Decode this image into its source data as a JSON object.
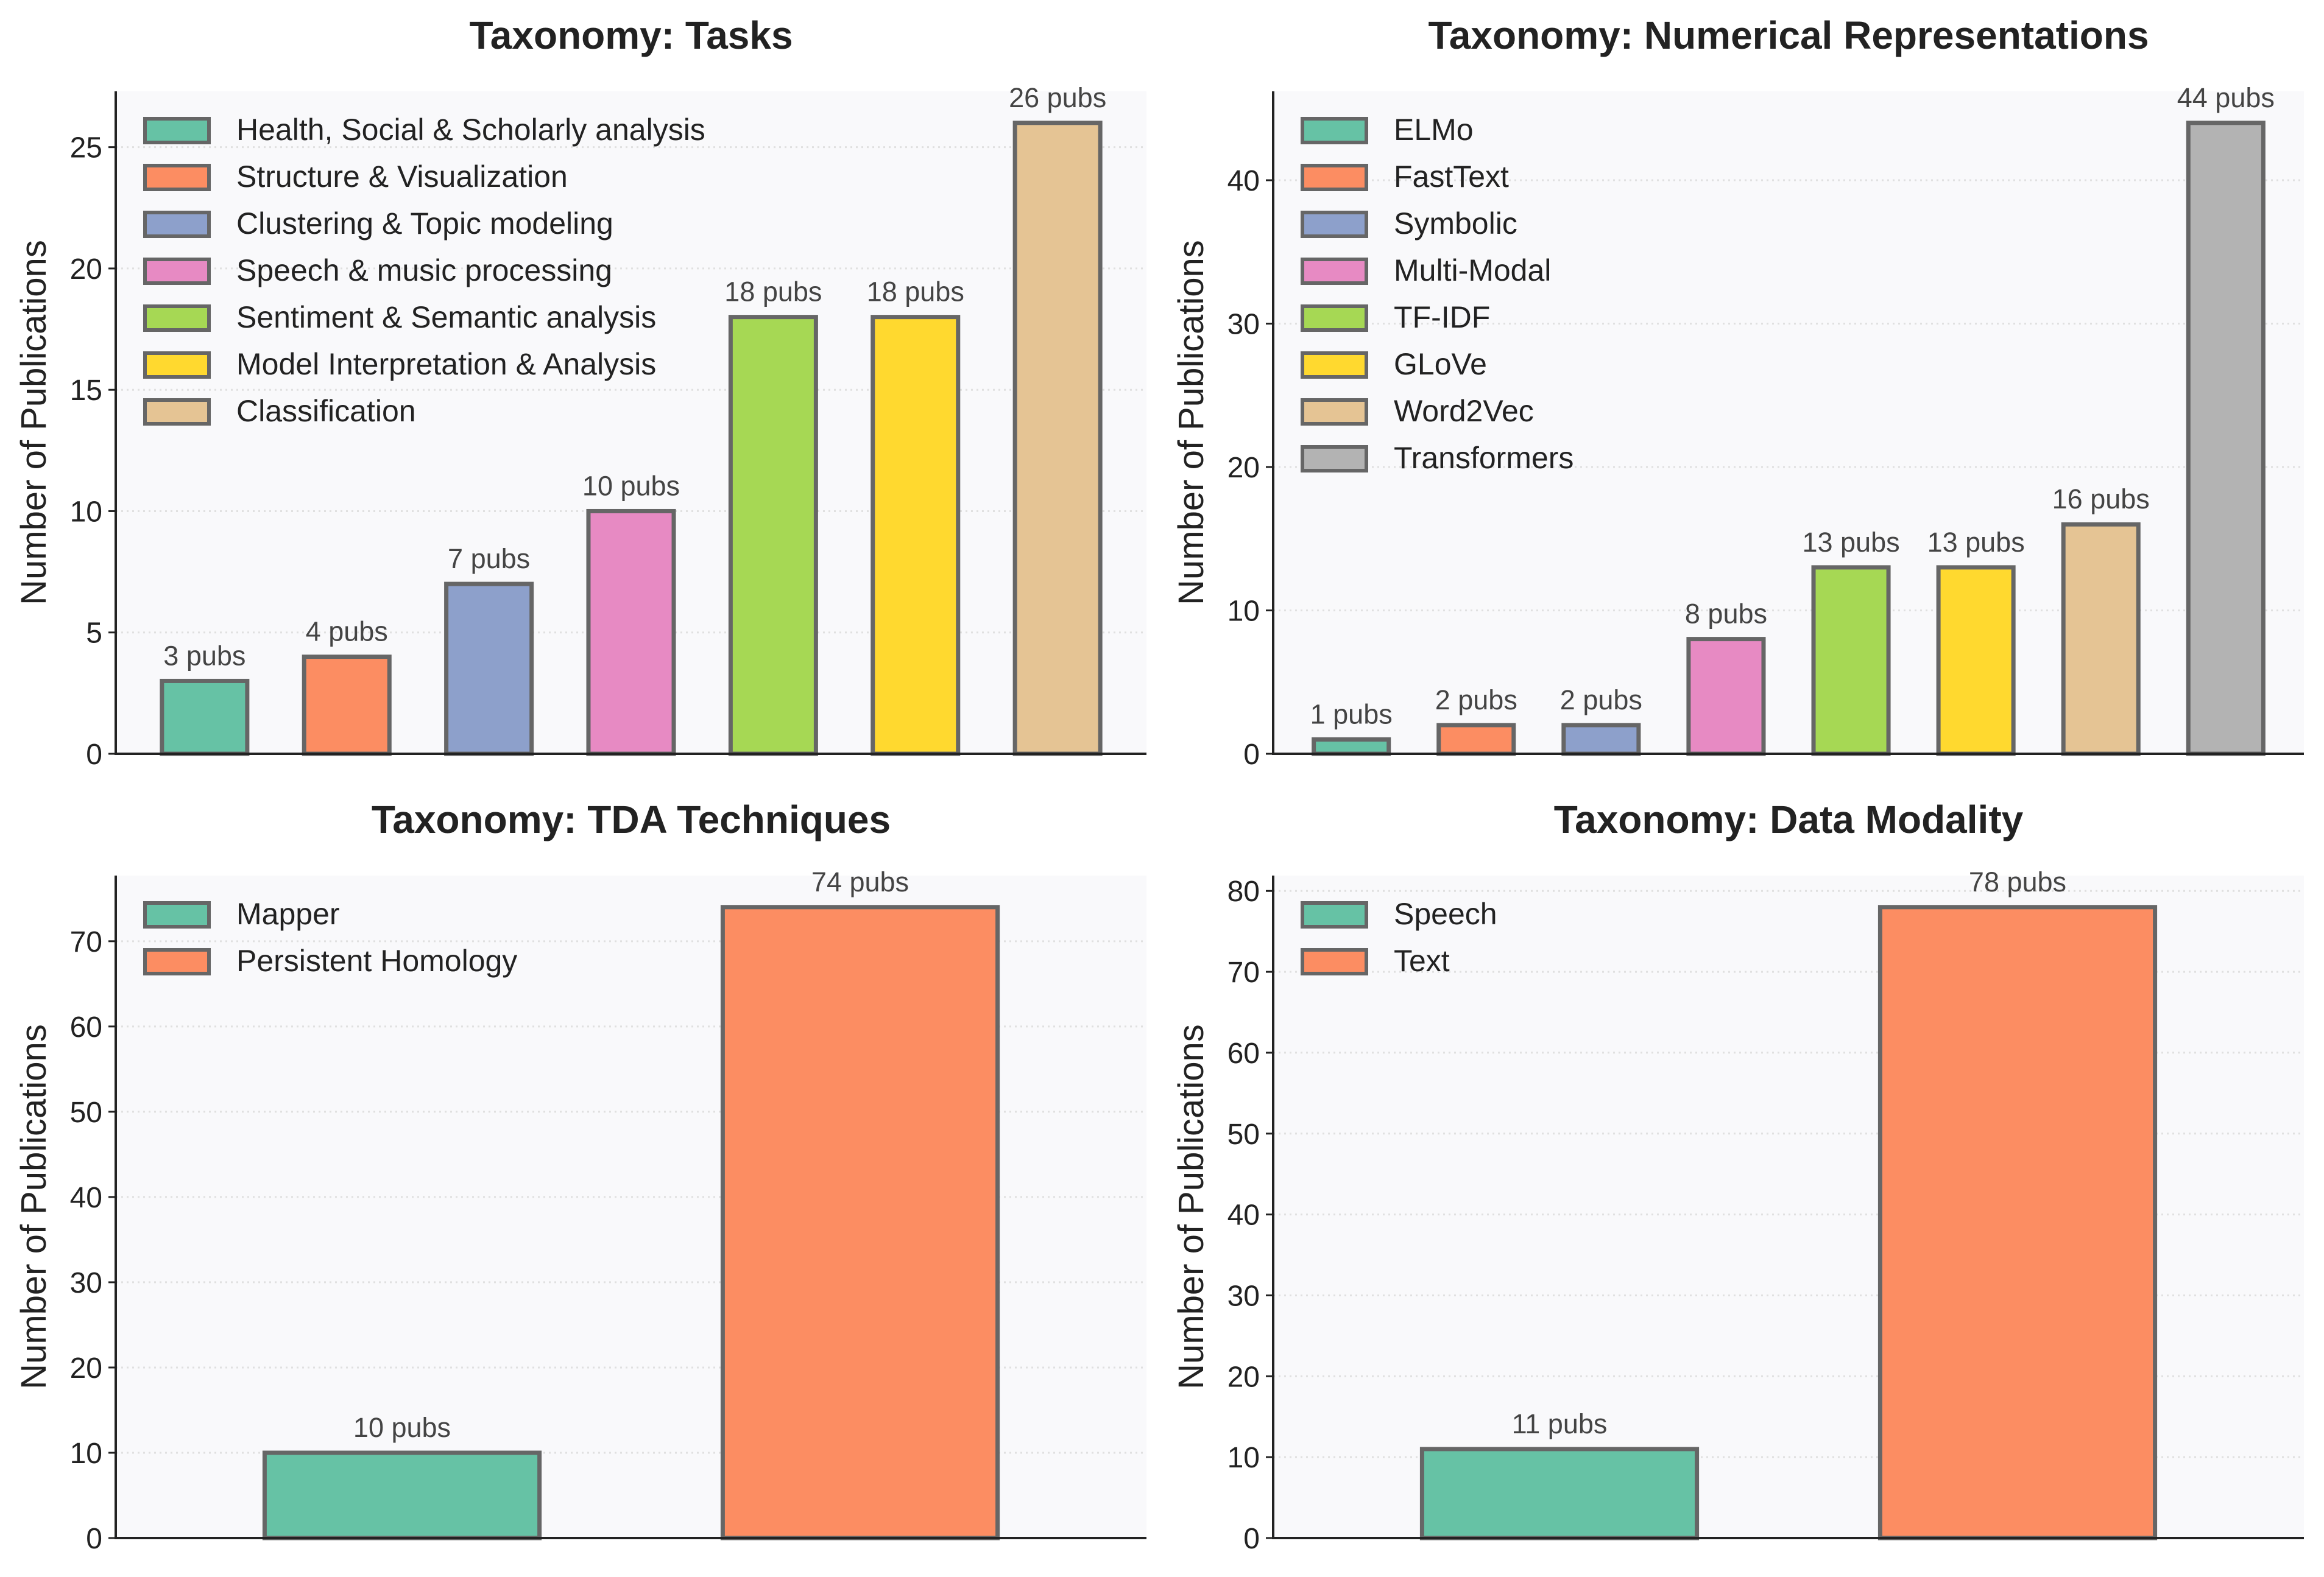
{
  "chart_data": [
    {
      "type": "bar",
      "title": "Taxonomy: Tasks",
      "ylabel": "Number of Publications",
      "ylim": [
        0,
        27.3
      ],
      "yticks": [
        0,
        5,
        10,
        15,
        20,
        25
      ],
      "grid": "horizontal dotted",
      "legend_position": "top-left",
      "categories": [
        "Health, Social & Scholarly analysis",
        "Structure & Visualization",
        "Clustering & Topic modeling",
        "Speech & music processing",
        "Sentiment & Semantic analysis",
        "Model Interpretation & Analysis",
        "Classification"
      ],
      "values": [
        3,
        4,
        7,
        10,
        18,
        18,
        26
      ],
      "data_labels": [
        "3 pubs",
        "4 pubs",
        "7 pubs",
        "10 pubs",
        "18 pubs",
        "18 pubs",
        "26 pubs"
      ],
      "colors": [
        "#66c2a5",
        "#fc8d62",
        "#8da0cb",
        "#e78ac3",
        "#a6d854",
        "#ffd92f",
        "#e5c494"
      ]
    },
    {
      "type": "bar",
      "title": "Taxonomy: Numerical Representations",
      "ylabel": "Number of Publications",
      "ylim": [
        0,
        46.2
      ],
      "yticks": [
        0,
        10,
        20,
        30,
        40
      ],
      "grid": "horizontal dotted",
      "legend_position": "top-left",
      "categories": [
        "ELMo",
        "FastText",
        "Symbolic",
        "Multi-Modal",
        "TF-IDF",
        "GLoVe",
        "Word2Vec",
        "Transformers"
      ],
      "values": [
        1,
        2,
        2,
        8,
        13,
        13,
        16,
        44
      ],
      "data_labels": [
        "1 pubs",
        "2 pubs",
        "2 pubs",
        "8 pubs",
        "13 pubs",
        "13 pubs",
        "16 pubs",
        "44 pubs"
      ],
      "colors": [
        "#66c2a5",
        "#fc8d62",
        "#8da0cb",
        "#e78ac3",
        "#a6d854",
        "#ffd92f",
        "#e5c494",
        "#b3b3b3"
      ]
    },
    {
      "type": "bar",
      "title": "Taxonomy: TDA Techniques",
      "ylabel": "Number of Publications",
      "ylim": [
        0,
        77.7
      ],
      "yticks": [
        0,
        10,
        20,
        30,
        40,
        50,
        60,
        70
      ],
      "grid": "horizontal dotted",
      "legend_position": "top-left",
      "categories": [
        "Mapper",
        "Persistent Homology"
      ],
      "values": [
        10,
        74
      ],
      "data_labels": [
        "10 pubs",
        "74 pubs"
      ],
      "colors": [
        "#66c2a5",
        "#fc8d62"
      ]
    },
    {
      "type": "bar",
      "title": "Taxonomy: Data Modality",
      "ylabel": "Number of Publications",
      "ylim": [
        0,
        81.9
      ],
      "yticks": [
        0,
        10,
        20,
        30,
        40,
        50,
        60,
        70,
        80
      ],
      "grid": "horizontal dotted",
      "legend_position": "top-left",
      "categories": [
        "Speech",
        "Text"
      ],
      "values": [
        11,
        78
      ],
      "data_labels": [
        "11 pubs",
        "78 pubs"
      ],
      "colors": [
        "#66c2a5",
        "#fc8d62"
      ]
    }
  ]
}
